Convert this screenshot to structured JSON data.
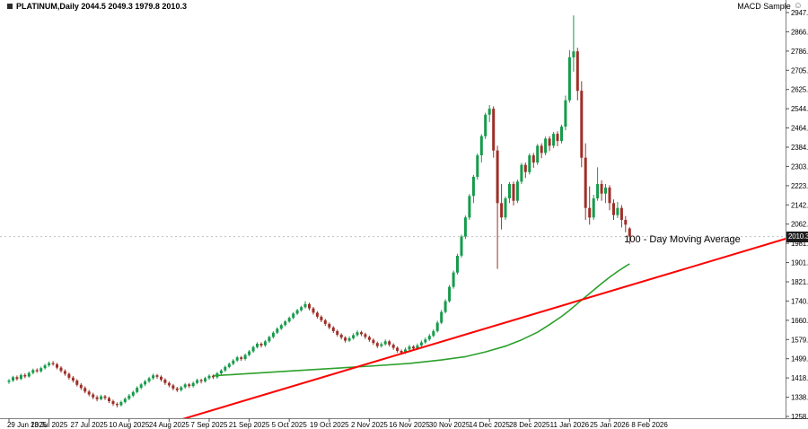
{
  "header": {
    "title": "PLATINUM,Daily 2044.5 2049.3 1979.8 2010.3",
    "expert_label": "MACD Sample",
    "expert_status_icon": "☺"
  },
  "chart_data": {
    "type": "candlestick",
    "symbol": "PLATINUM",
    "timeframe": "Daily",
    "last": {
      "open": 2044.5,
      "high": 2049.3,
      "low": 1979.8,
      "close": 2010.3
    },
    "price_label_text": "2010.3",
    "y_axis": {
      "min": 1258.0,
      "max": 2947.0,
      "labels": [
        "2947.0",
        "2866.6",
        "2786.1",
        "2705.7",
        "2625.3",
        "2544.9",
        "2464.4",
        "2384.0",
        "2303.6",
        "2223.1",
        "2142.7",
        "2062.3",
        "1981.9",
        "1901.4",
        "1821.0",
        "1740.6",
        "1660.1",
        "1579.7",
        "1499.3",
        "1418.9",
        "1338.4",
        "1258.0"
      ]
    },
    "x_axis": {
      "tick_bars": [
        0,
        10,
        20,
        30,
        40,
        50,
        60,
        70,
        80,
        90,
        100,
        110,
        120,
        130,
        140,
        150,
        160
      ],
      "labels": [
        "29 Jun 2025",
        "13 Jul 2025",
        "27 Jul 2025",
        "10 Aug 2025",
        "24 Aug 2025",
        "7 Sep 2025",
        "21 Sep 2025",
        "5 Oct 2025",
        "19 Oct 2025",
        "2 Nov 2025",
        "16 Nov 2025",
        "30 Nov 2025",
        "14 Dec 2025",
        "28 Dec 2025",
        "11 Jan 2026",
        "25 Jan 2026",
        "8 Feb 2026"
      ]
    },
    "candles": [
      [
        1402,
        1415,
        1394,
        1408
      ],
      [
        1408,
        1428,
        1402,
        1422
      ],
      [
        1422,
        1429,
        1408,
        1415
      ],
      [
        1415,
        1437,
        1410,
        1431
      ],
      [
        1431,
        1438,
        1418,
        1425
      ],
      [
        1425,
        1446,
        1420,
        1440
      ],
      [
        1440,
        1458,
        1434,
        1452
      ],
      [
        1452,
        1459,
        1440,
        1447
      ],
      [
        1447,
        1466,
        1441,
        1460
      ],
      [
        1460,
        1478,
        1454,
        1472
      ],
      [
        1472,
        1488,
        1465,
        1481
      ],
      [
        1481,
        1490,
        1470,
        1476
      ],
      [
        1476,
        1482,
        1455,
        1462
      ],
      [
        1462,
        1468,
        1441,
        1448
      ],
      [
        1448,
        1455,
        1428,
        1436
      ],
      [
        1436,
        1442,
        1412,
        1420
      ],
      [
        1420,
        1427,
        1400,
        1408
      ],
      [
        1408,
        1414,
        1383,
        1390
      ],
      [
        1390,
        1397,
        1369,
        1377
      ],
      [
        1377,
        1384,
        1355,
        1362
      ],
      [
        1362,
        1369,
        1342,
        1350
      ],
      [
        1350,
        1357,
        1330,
        1338
      ],
      [
        1338,
        1346,
        1321,
        1330
      ],
      [
        1330,
        1349,
        1325,
        1342
      ],
      [
        1342,
        1348,
        1327,
        1335
      ],
      [
        1335,
        1341,
        1314,
        1322
      ],
      [
        1322,
        1328,
        1302,
        1310
      ],
      [
        1310,
        1317,
        1296,
        1305
      ],
      [
        1305,
        1324,
        1300,
        1318
      ],
      [
        1318,
        1338,
        1312,
        1332
      ],
      [
        1332,
        1352,
        1326,
        1345
      ],
      [
        1345,
        1366,
        1339,
        1360
      ],
      [
        1360,
        1384,
        1354,
        1378
      ],
      [
        1378,
        1398,
        1371,
        1392
      ],
      [
        1392,
        1411,
        1385,
        1405
      ],
      [
        1405,
        1424,
        1398,
        1418
      ],
      [
        1418,
        1437,
        1411,
        1430
      ],
      [
        1430,
        1436,
        1416,
        1424
      ],
      [
        1424,
        1430,
        1404,
        1412
      ],
      [
        1412,
        1418,
        1390,
        1398
      ],
      [
        1398,
        1404,
        1380,
        1388
      ],
      [
        1388,
        1394,
        1367,
        1375
      ],
      [
        1375,
        1382,
        1360,
        1368
      ],
      [
        1368,
        1386,
        1362,
        1380
      ],
      [
        1380,
        1398,
        1374,
        1392
      ],
      [
        1392,
        1398,
        1377,
        1385
      ],
      [
        1385,
        1404,
        1379,
        1398
      ],
      [
        1398,
        1416,
        1392,
        1410
      ],
      [
        1410,
        1416,
        1396,
        1405
      ],
      [
        1405,
        1424,
        1399,
        1418
      ],
      [
        1418,
        1434,
        1412,
        1428
      ],
      [
        1428,
        1434,
        1414,
        1422
      ],
      [
        1422,
        1444,
        1416,
        1438
      ],
      [
        1438,
        1456,
        1432,
        1450
      ],
      [
        1450,
        1471,
        1444,
        1465
      ],
      [
        1465,
        1484,
        1459,
        1478
      ],
      [
        1478,
        1498,
        1472,
        1492
      ],
      [
        1492,
        1511,
        1486,
        1505
      ],
      [
        1505,
        1511,
        1490,
        1498
      ],
      [
        1498,
        1521,
        1492,
        1515
      ],
      [
        1515,
        1536,
        1509,
        1530
      ],
      [
        1530,
        1554,
        1524,
        1548
      ],
      [
        1548,
        1568,
        1542,
        1562
      ],
      [
        1562,
        1568,
        1546,
        1555
      ],
      [
        1555,
        1578,
        1549,
        1572
      ],
      [
        1572,
        1596,
        1566,
        1590
      ],
      [
        1590,
        1614,
        1584,
        1608
      ],
      [
        1608,
        1631,
        1602,
        1625
      ],
      [
        1625,
        1646,
        1619,
        1640
      ],
      [
        1640,
        1661,
        1634,
        1655
      ],
      [
        1655,
        1676,
        1649,
        1670
      ],
      [
        1670,
        1694,
        1664,
        1688
      ],
      [
        1688,
        1708,
        1682,
        1702
      ],
      [
        1702,
        1721,
        1696,
        1715
      ],
      [
        1715,
        1740,
        1709,
        1728
      ],
      [
        1728,
        1734,
        1702,
        1710
      ],
      [
        1710,
        1716,
        1684,
        1692
      ],
      [
        1692,
        1698,
        1667,
        1675
      ],
      [
        1675,
        1681,
        1652,
        1660
      ],
      [
        1660,
        1666,
        1637,
        1645
      ],
      [
        1645,
        1651,
        1622,
        1630
      ],
      [
        1630,
        1636,
        1607,
        1615
      ],
      [
        1615,
        1621,
        1592,
        1600
      ],
      [
        1600,
        1606,
        1580,
        1588
      ],
      [
        1588,
        1594,
        1567,
        1575
      ],
      [
        1575,
        1593,
        1569,
        1585
      ],
      [
        1585,
        1606,
        1579,
        1598
      ],
      [
        1598,
        1618,
        1592,
        1610
      ],
      [
        1610,
        1616,
        1594,
        1602
      ],
      [
        1602,
        1608,
        1582,
        1590
      ],
      [
        1590,
        1596,
        1570,
        1578
      ],
      [
        1578,
        1584,
        1557,
        1565
      ],
      [
        1565,
        1571,
        1544,
        1552
      ],
      [
        1552,
        1568,
        1546,
        1560
      ],
      [
        1560,
        1580,
        1554,
        1572
      ],
      [
        1572,
        1578,
        1550,
        1558
      ],
      [
        1558,
        1564,
        1537,
        1545
      ],
      [
        1545,
        1551,
        1524,
        1532
      ],
      [
        1532,
        1538,
        1516,
        1525
      ],
      [
        1525,
        1546,
        1519,
        1538
      ],
      [
        1538,
        1558,
        1532,
        1550
      ],
      [
        1550,
        1556,
        1534,
        1542
      ],
      [
        1542,
        1563,
        1536,
        1555
      ],
      [
        1555,
        1576,
        1549,
        1568
      ],
      [
        1568,
        1588,
        1562,
        1580
      ],
      [
        1580,
        1603,
        1574,
        1595
      ],
      [
        1595,
        1623,
        1589,
        1615
      ],
      [
        1615,
        1658,
        1609,
        1650
      ],
      [
        1650,
        1703,
        1644,
        1695
      ],
      [
        1695,
        1748,
        1689,
        1740
      ],
      [
        1740,
        1808,
        1734,
        1800
      ],
      [
        1800,
        1868,
        1792,
        1860
      ],
      [
        1860,
        1938,
        1852,
        1930
      ],
      [
        1930,
        2018,
        1922,
        2010
      ],
      [
        2010,
        2098,
        2000,
        2090
      ],
      [
        2090,
        2188,
        2080,
        2180
      ],
      [
        2180,
        2268,
        2150,
        2260
      ],
      [
        2260,
        2358,
        2248,
        2350
      ],
      [
        2350,
        2438,
        2320,
        2430
      ],
      [
        2430,
        2528,
        2418,
        2520
      ],
      [
        2520,
        2560,
        2490,
        2545
      ],
      [
        2545,
        2555,
        2340,
        2370
      ],
      [
        2370,
        2390,
        1875,
        2150
      ],
      [
        2150,
        2230,
        2040,
        2090
      ],
      [
        2090,
        2178,
        2080,
        2170
      ],
      [
        2170,
        2238,
        2150,
        2230
      ],
      [
        2230,
        2240,
        2140,
        2160
      ],
      [
        2160,
        2248,
        2150,
        2240
      ],
      [
        2240,
        2318,
        2230,
        2310
      ],
      [
        2310,
        2320,
        2255,
        2280
      ],
      [
        2280,
        2358,
        2270,
        2350
      ],
      [
        2350,
        2360,
        2298,
        2320
      ],
      [
        2320,
        2398,
        2310,
        2390
      ],
      [
        2390,
        2400,
        2338,
        2360
      ],
      [
        2360,
        2428,
        2350,
        2420
      ],
      [
        2420,
        2430,
        2368,
        2390
      ],
      [
        2390,
        2448,
        2380,
        2440
      ],
      [
        2440,
        2450,
        2388,
        2410
      ],
      [
        2410,
        2478,
        2400,
        2470
      ],
      [
        2470,
        2600,
        2455,
        2580
      ],
      [
        2580,
        2790,
        2570,
        2760
      ],
      [
        2760,
        2935,
        2700,
        2785
      ],
      [
        2785,
        2800,
        2580,
        2620
      ],
      [
        2620,
        2660,
        2300,
        2340
      ],
      [
        2340,
        2400,
        2080,
        2130
      ],
      [
        2130,
        2220,
        2060,
        2090
      ],
      [
        2090,
        2185,
        2080,
        2170
      ],
      [
        2170,
        2300,
        2160,
        2230
      ],
      [
        2230,
        2245,
        2160,
        2190
      ],
      [
        2190,
        2230,
        2150,
        2215
      ],
      [
        2215,
        2225,
        2120,
        2150
      ],
      [
        2150,
        2165,
        2080,
        2100
      ],
      [
        2100,
        2155,
        2088,
        2130
      ],
      [
        2130,
        2142,
        2048,
        2080
      ],
      [
        2080,
        2096,
        2028,
        2060
      ],
      [
        2044.5,
        2049.3,
        1979.8,
        2010.3
      ]
    ],
    "ma": {
      "name": "100 - Day Moving Average",
      "color": "#2ca02c",
      "points": [
        [
          51,
          1428
        ],
        [
          70,
          1448
        ],
        [
          90,
          1468
        ],
        [
          100,
          1480
        ],
        [
          108,
          1494
        ],
        [
          114,
          1508
        ],
        [
          119,
          1528
        ],
        [
          124,
          1552
        ],
        [
          128,
          1578
        ],
        [
          132,
          1610
        ],
        [
          135,
          1642
        ],
        [
          138,
          1676
        ],
        [
          140,
          1702
        ],
        [
          142,
          1730
        ],
        [
          144,
          1758
        ],
        [
          146,
          1786
        ],
        [
          148,
          1814
        ],
        [
          150,
          1840
        ],
        [
          152,
          1864
        ],
        [
          154,
          1886
        ],
        [
          155,
          1896
        ]
      ]
    },
    "trendline": {
      "color": "#ff0000",
      "from": [
        41,
        1235
      ],
      "to": [
        194,
        2001
      ]
    },
    "annotations": [
      {
        "text": "100 - Day Moving Average",
        "bar": 155,
        "price": 1994
      }
    ],
    "colors": {
      "background": "#ffffff",
      "bull": "#169b4b",
      "bear": "#9e2f28",
      "ma_line": "#2ca02c",
      "trend_line": "#ff0000",
      "axis_text": "#000000",
      "separator": "#808080",
      "bid_line": "#c0c0c0",
      "price_tag_bg": "#1c1c1c",
      "price_tag_text": "#ffffff"
    }
  }
}
